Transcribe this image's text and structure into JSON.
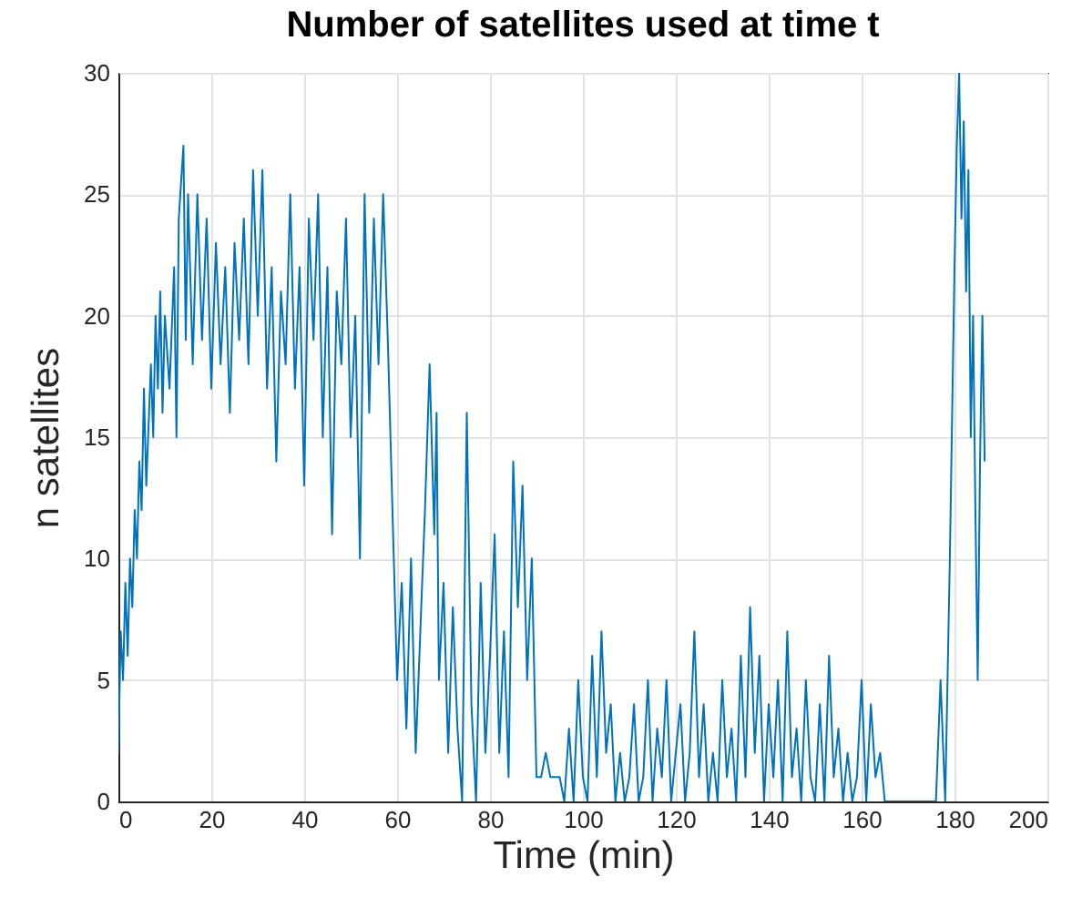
{
  "chart_data": {
    "type": "line",
    "title": "Number of satellites used at time t",
    "xlabel": "Time (min)",
    "ylabel": "n satellites",
    "x": [
      0,
      0.5,
      1,
      1.5,
      2,
      2.5,
      3,
      3.5,
      4,
      4.5,
      5,
      5.5,
      6,
      7,
      7.5,
      8,
      8.5,
      9,
      9.5,
      10,
      11,
      12,
      12.5,
      13,
      14,
      14.5,
      15,
      16,
      17,
      18,
      19,
      20,
      21,
      22,
      23,
      24,
      25,
      26,
      27,
      28,
      29,
      30,
      31,
      32,
      33,
      34,
      35,
      36,
      37,
      38,
      39,
      40,
      41,
      42,
      43,
      44,
      45,
      46,
      47,
      48,
      49,
      50,
      51,
      52,
      53,
      54,
      55,
      56,
      57,
      58,
      59,
      60,
      61,
      62,
      63,
      64,
      65,
      66,
      67,
      68,
      68.5,
      69,
      70,
      71,
      72,
      73,
      74,
      75,
      76,
      77,
      78,
      79,
      80,
      81,
      82,
      83,
      84,
      85,
      86,
      87,
      88,
      89,
      90,
      91,
      92,
      93,
      95,
      96,
      97,
      98,
      99,
      100,
      101,
      102,
      103,
      104,
      105,
      106,
      107,
      108,
      109,
      110,
      111,
      112,
      113,
      114,
      115,
      116,
      117,
      118,
      119,
      120,
      121,
      122,
      123,
      124,
      125,
      126,
      127,
      128,
      129,
      130,
      131,
      132,
      133,
      134,
      135,
      136,
      137,
      138,
      139,
      140,
      141,
      142,
      143,
      144,
      145,
      146,
      147,
      148,
      149,
      150,
      151,
      152,
      153,
      154,
      155,
      156,
      157,
      158,
      159,
      160,
      161,
      162,
      163,
      164,
      165,
      170,
      172,
      176,
      177,
      178,
      179,
      180,
      180.5,
      181,
      181.5,
      182,
      182.5,
      183,
      183.5,
      184,
      184.5,
      185,
      185.5,
      186,
      186.5
    ],
    "series": [
      {
        "color": "#0072bd",
        "values": [
          2,
          7,
          5,
          9,
          6,
          10,
          8,
          12,
          10,
          14,
          12,
          17,
          13,
          18,
          15,
          20,
          17,
          21,
          16,
          20,
          17,
          22,
          15,
          24,
          27,
          19,
          25,
          18,
          25,
          19,
          24,
          17,
          23,
          18,
          22,
          16,
          23,
          19,
          24,
          18,
          26,
          20,
          26,
          17,
          22,
          14,
          21,
          18,
          25,
          17,
          22,
          13,
          24,
          19,
          25,
          15,
          22,
          11,
          21,
          18,
          24,
          15,
          20,
          10,
          25,
          16,
          24,
          18,
          25,
          19,
          12,
          5,
          9,
          3,
          10,
          2,
          7,
          12,
          18,
          11,
          16,
          5,
          9,
          2,
          8,
          3,
          0,
          16,
          4,
          0,
          9,
          2,
          6,
          11,
          2,
          7,
          1,
          14,
          8,
          13,
          5,
          10,
          1,
          1,
          2,
          1,
          1,
          0,
          3,
          0,
          5,
          1,
          0,
          6,
          1,
          7,
          2,
          4,
          0,
          2,
          0,
          1,
          4,
          0,
          1,
          5,
          0,
          3,
          1,
          5,
          0,
          2,
          4,
          0,
          2,
          7,
          1,
          4,
          0,
          2,
          0,
          5,
          1,
          3,
          0,
          6,
          1,
          8,
          2,
          6,
          0,
          4,
          1,
          5,
          0,
          7,
          1,
          3,
          0,
          5,
          1,
          0,
          4,
          0,
          6,
          1,
          3,
          0,
          2,
          0,
          1,
          5,
          0,
          4,
          1,
          2,
          0,
          0,
          0,
          0,
          5,
          0,
          10,
          22,
          27,
          30,
          24,
          28,
          21,
          26,
          15,
          20,
          12,
          5,
          14,
          20,
          14
        ]
      }
    ],
    "xlim": [
      0,
      200
    ],
    "xticks": [
      0,
      20,
      40,
      60,
      80,
      100,
      120,
      140,
      160,
      180,
      200
    ],
    "ylim": [
      0,
      30
    ],
    "yticks": [
      0,
      5,
      10,
      15,
      20,
      25,
      30
    ],
    "grid": true
  }
}
